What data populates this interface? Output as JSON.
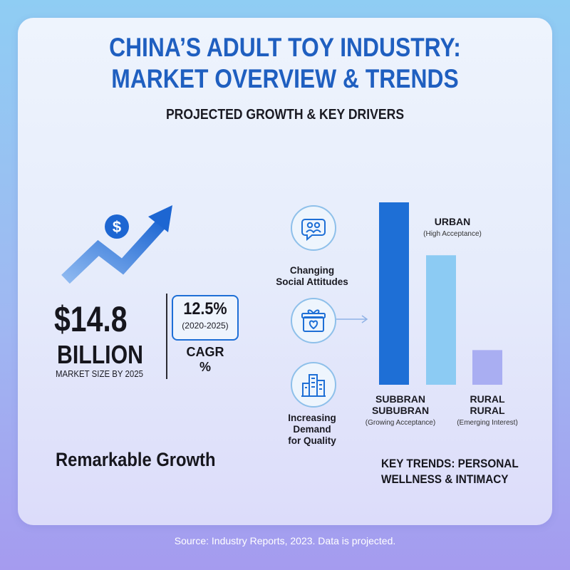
{
  "title_line1": "CHINA’S ADULT TOY INDUSTRY:",
  "title_line2": "MARKET OVERVIEW & TRENDS",
  "subtitle": "PROJECTED GROWTH & KEY DRIVERS",
  "market": {
    "value": "$14.8",
    "unit": "BILLION",
    "caption": "MARKET SIZE BY 2025",
    "cagr_value": "12.5%",
    "cagr_period": "(2020-2025)",
    "cagr_label": "CAGR",
    "cagr_pct": "%",
    "headline": "Remarkable Growth"
  },
  "drivers": [
    {
      "label_line1": "Changing",
      "label_line2": "Social Attitudes",
      "label_line3": ""
    },
    {
      "label_line1": "",
      "label_line2": "",
      "label_line3": ""
    },
    {
      "label_line1": "Increasing",
      "label_line2": "Demand",
      "label_line3": "for Quality"
    }
  ],
  "key_trends_line1": "KEY TRENDS: PERSONAL",
  "key_trends_line2": "WELLNESS & INTIMACY",
  "footer": "Source: Industry Reports, 2023. Data is projected.",
  "colors": {
    "title": "#1f5fc0",
    "bar_urban": "#1e6fd6",
    "bar_suburban": "#8ccbf3",
    "bar_rural": "#a9aef2"
  },
  "icons": [
    "dollar-icon",
    "growth-arrow-icon",
    "people-bubble-icon",
    "gift-heart-icon",
    "buildings-icon",
    "arrow-right-icon"
  ],
  "chart_data": {
    "type": "bar",
    "categories": [
      "URBAN",
      "SUBBRAN SUBUBRAN",
      "RURAL RURAL"
    ],
    "values": [
      100,
      71,
      19
    ],
    "labels": {
      "urban": "URBAN",
      "urban_note": "(High Acceptance)",
      "suburban_line1": "SUBBRAN",
      "suburban_line2": "SUBUBRAN",
      "suburban_note": "(Growing Acceptance)",
      "rural_line1": "RURAL",
      "rural_line2": "RURAL",
      "rural_note": "(Emerging Interest)"
    },
    "ylim": [
      0,
      100
    ],
    "grid": false,
    "legend": "none"
  }
}
